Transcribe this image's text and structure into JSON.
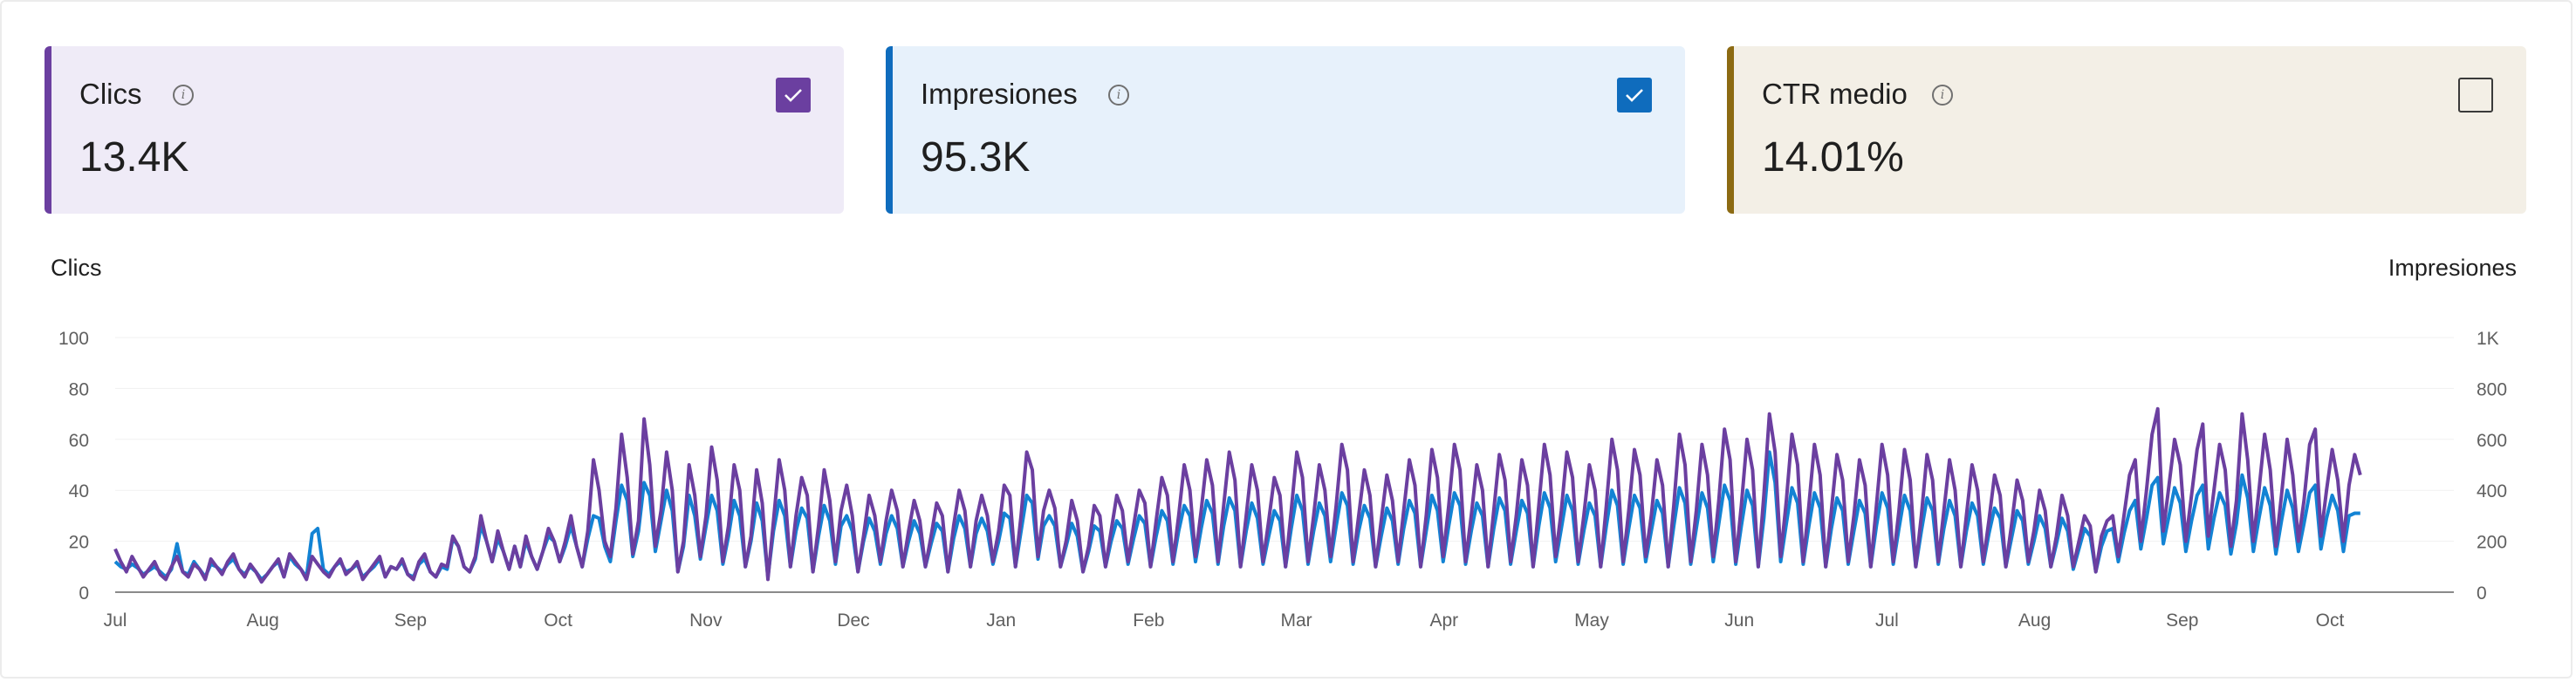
{
  "metrics": {
    "clicks": {
      "label": "Clics",
      "value": "13.4K",
      "checked": true,
      "color": "#6b3fa0",
      "bg": "#efebf7"
    },
    "impressions": {
      "label": "Impresiones",
      "value": "95.3K",
      "checked": true,
      "color": "#0f6cbd",
      "bg": "#e7f1fb"
    },
    "ctr": {
      "label": "CTR medio",
      "value": "14.01%",
      "checked": false,
      "color": "#8c6a12",
      "bg": "#f3efe6"
    }
  },
  "chart_data": {
    "type": "line",
    "title": "",
    "ylabel_left": "Clics",
    "ylabel_right": "Impresiones",
    "ylim_left": [
      0,
      100
    ],
    "ylim_right": [
      0,
      1000
    ],
    "yticks_left": [
      "100",
      "80",
      "60",
      "40",
      "20",
      "0"
    ],
    "yticks_right": [
      "1K",
      "800",
      "600",
      "400",
      "200",
      "0"
    ],
    "xticks": [
      "Jul",
      "Aug",
      "Sep",
      "Oct",
      "Nov",
      "Dec",
      "Jan",
      "Feb",
      "Mar",
      "Apr",
      "May",
      "Jun",
      "Jul",
      "Aug",
      "Sep",
      "Oct"
    ],
    "grid": true,
    "series": [
      {
        "name": "Clics",
        "axis": "left",
        "color": "#6b3fa0",
        "values": [
          17,
          12,
          8,
          14,
          10,
          6,
          9,
          12,
          7,
          5,
          10,
          14,
          8,
          6,
          11,
          9,
          5,
          13,
          10,
          7,
          12,
          15,
          9,
          6,
          11,
          8,
          4,
          7,
          10,
          13,
          6,
          15,
          12,
          9,
          5,
          14,
          11,
          8,
          6,
          10,
          13,
          7,
          9,
          12,
          5,
          8,
          11,
          14,
          6,
          10,
          9,
          13,
          7,
          5,
          12,
          15,
          8,
          6,
          11,
          10,
          22,
          18,
          10,
          8,
          14,
          30,
          20,
          12,
          24,
          16,
          9,
          18,
          10,
          22,
          14,
          9,
          16,
          25,
          20,
          12,
          20,
          30,
          18,
          10,
          24,
          52,
          40,
          20,
          14,
          33,
          62,
          45,
          15,
          28,
          68,
          50,
          18,
          32,
          55,
          40,
          8,
          20,
          50,
          38,
          14,
          30,
          57,
          44,
          12,
          26,
          50,
          40,
          10,
          22,
          48,
          35,
          5,
          28,
          52,
          40,
          10,
          30,
          45,
          38,
          8,
          26,
          48,
          36,
          12,
          32,
          42,
          30,
          8,
          22,
          38,
          30,
          12,
          28,
          40,
          32,
          10,
          24,
          36,
          28,
          10,
          22,
          35,
          30,
          8,
          26,
          40,
          32,
          10,
          28,
          38,
          30,
          12,
          24,
          42,
          38,
          10,
          30,
          55,
          48,
          14,
          32,
          40,
          33,
          10,
          20,
          36,
          28,
          8,
          18,
          34,
          30,
          10,
          24,
          38,
          32,
          12,
          26,
          40,
          35,
          10,
          28,
          45,
          38,
          12,
          30,
          50,
          40,
          14,
          32,
          52,
          42,
          12,
          34,
          55,
          44,
          10,
          30,
          50,
          40,
          12,
          28,
          45,
          38,
          10,
          32,
          55,
          45,
          12,
          30,
          50,
          40,
          14,
          34,
          58,
          48,
          12,
          30,
          48,
          38,
          10,
          28,
          46,
          36,
          12,
          32,
          52,
          42,
          10,
          30,
          56,
          45,
          14,
          34,
          58,
          48,
          12,
          30,
          50,
          40,
          10,
          32,
          54,
          44,
          12,
          30,
          52,
          42,
          10,
          34,
          58,
          46,
          14,
          32,
          55,
          45,
          12,
          30,
          50,
          40,
          10,
          34,
          60,
          48,
          12,
          32,
          56,
          46,
          14,
          30,
          52,
          42,
          10,
          34,
          62,
          50,
          12,
          32,
          58,
          46,
          14,
          36,
          64,
          52,
          12,
          34,
          60,
          48,
          10,
          38,
          70,
          55,
          14,
          36,
          62,
          50,
          12,
          34,
          58,
          46,
          10,
          32,
          54,
          44,
          12,
          30,
          52,
          42,
          10,
          34,
          58,
          46,
          12,
          32,
          56,
          44,
          10,
          30,
          54,
          44,
          12,
          32,
          52,
          40,
          10,
          30,
          50,
          40,
          12,
          28,
          46,
          38,
          10,
          26,
          44,
          36,
          12,
          24,
          40,
          32,
          10,
          22,
          38,
          30,
          10,
          20,
          30,
          26,
          8,
          22,
          28,
          30,
          14,
          30,
          46,
          52,
          20,
          40,
          62,
          72,
          24,
          42,
          60,
          50,
          20,
          38,
          56,
          66,
          22,
          40,
          58,
          48,
          18,
          36,
          70,
          52,
          20,
          40,
          62,
          48,
          18,
          38,
          60,
          46,
          20,
          36,
          58,
          64,
          22,
          40,
          56,
          44,
          20,
          42,
          54,
          46
        ]
      },
      {
        "name": "Impresiones",
        "axis": "right",
        "color": "#1283d4",
        "values": [
          120,
          100,
          90,
          110,
          95,
          70,
          85,
          100,
          80,
          60,
          90,
          190,
          80,
          70,
          120,
          90,
          60,
          110,
          100,
          80,
          110,
          130,
          90,
          70,
          100,
          80,
          50,
          70,
          100,
          120,
          60,
          140,
          110,
          90,
          60,
          230,
          250,
          90,
          70,
          100,
          120,
          80,
          90,
          110,
          60,
          80,
          100,
          130,
          60,
          100,
          90,
          120,
          70,
          60,
          110,
          130,
          80,
          60,
          100,
          90,
          210,
          180,
          100,
          80,
          130,
          260,
          200,
          120,
          210,
          160,
          90,
          180,
          100,
          200,
          140,
          90,
          160,
          220,
          200,
          120,
          180,
          260,
          180,
          100,
          210,
          300,
          290,
          180,
          120,
          280,
          420,
          360,
          140,
          240,
          430,
          380,
          160,
          280,
          400,
          320,
          80,
          180,
          380,
          300,
          130,
          260,
          380,
          320,
          110,
          220,
          360,
          300,
          100,
          200,
          350,
          280,
          60,
          240,
          360,
          300,
          100,
          240,
          330,
          290,
          80,
          220,
          340,
          280,
          110,
          260,
          300,
          240,
          80,
          200,
          290,
          240,
          110,
          230,
          300,
          250,
          100,
          200,
          280,
          230,
          100,
          190,
          270,
          240,
          80,
          210,
          300,
          250,
          100,
          230,
          290,
          240,
          110,
          200,
          310,
          290,
          100,
          240,
          380,
          350,
          130,
          260,
          300,
          260,
          100,
          180,
          270,
          220,
          80,
          160,
          260,
          240,
          100,
          200,
          280,
          250,
          110,
          210,
          300,
          270,
          100,
          220,
          320,
          280,
          110,
          240,
          340,
          300,
          120,
          250,
          360,
          310,
          110,
          260,
          370,
          320,
          100,
          240,
          350,
          290,
          110,
          220,
          320,
          280,
          100,
          250,
          380,
          320,
          110,
          240,
          350,
          300,
          120,
          260,
          390,
          340,
          110,
          240,
          340,
          290,
          100,
          220,
          330,
          280,
          110,
          250,
          360,
          310,
          100,
          240,
          380,
          320,
          120,
          260,
          390,
          340,
          110,
          240,
          350,
          300,
          100,
          250,
          370,
          320,
          110,
          240,
          360,
          310,
          100,
          260,
          390,
          330,
          120,
          250,
          380,
          320,
          110,
          240,
          350,
          300,
          100,
          260,
          400,
          340,
          110,
          250,
          380,
          330,
          120,
          240,
          360,
          310,
          100,
          260,
          410,
          350,
          110,
          250,
          390,
          330,
          120,
          270,
          420,
          360,
          110,
          260,
          400,
          340,
          100,
          290,
          550,
          430,
          120,
          270,
          410,
          350,
          110,
          260,
          390,
          330,
          100,
          250,
          370,
          320,
          110,
          240,
          360,
          310,
          100,
          260,
          390,
          330,
          110,
          250,
          380,
          320,
          100,
          240,
          370,
          320,
          110,
          250,
          360,
          300,
          100,
          240,
          350,
          300,
          110,
          230,
          330,
          290,
          100,
          210,
          320,
          280,
          110,
          200,
          300,
          250,
          100,
          190,
          290,
          240,
          90,
          170,
          250,
          220,
          80,
          180,
          240,
          250,
          120,
          230,
          320,
          360,
          170,
          290,
          420,
          450,
          190,
          300,
          410,
          350,
          160,
          280,
          380,
          420,
          170,
          290,
          390,
          340,
          150,
          270,
          460,
          370,
          160,
          290,
          410,
          340,
          150,
          280,
          400,
          330,
          160,
          270,
          390,
          420,
          170,
          290,
          380,
          320,
          160,
          300,
          310,
          310
        ]
      }
    ]
  }
}
